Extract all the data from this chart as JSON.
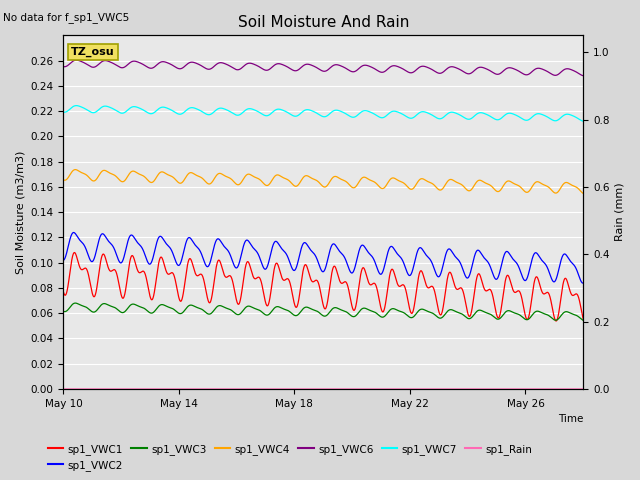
{
  "title": "Soil Moisture And Rain",
  "top_left_note": "No data for f_sp1_VWC5",
  "annotation_text": "TZ_osu",
  "annotation_bgcolor": "#f0e060",
  "annotation_edgecolor": "#a0a000",
  "xlabel": "Time",
  "ylabel_left": "Soil Moisture (m3/m3)",
  "ylabel_right": "Rain (mm)",
  "xlim_days": [
    0,
    18
  ],
  "ylim_left": [
    0.0,
    0.28
  ],
  "ylim_right": [
    0.0,
    1.05
  ],
  "yticks_left": [
    0.0,
    0.02,
    0.04,
    0.06,
    0.08,
    0.1,
    0.12,
    0.14,
    0.16,
    0.18,
    0.2,
    0.22,
    0.24,
    0.26
  ],
  "yticks_right": [
    0.0,
    0.2,
    0.4,
    0.6,
    0.8,
    1.0
  ],
  "xtick_labels": [
    "May 10",
    "May 14",
    "May 18",
    "May 22",
    "May 26"
  ],
  "xtick_positions": [
    0,
    4,
    8,
    12,
    16
  ],
  "background_color": "#d8d8d8",
  "plot_bg_color": "#e8e8e8",
  "grid_color": "white",
  "series": {
    "sp1_VWC1": {
      "color": "red",
      "base": 0.093,
      "amp": 0.02,
      "trend": -0.0012,
      "freq": 1.0,
      "phase": -1.57,
      "sharpness": 3.0
    },
    "sp1_VWC2": {
      "color": "blue",
      "base": 0.114,
      "amp": 0.013,
      "trend": -0.001,
      "freq": 1.0,
      "phase": -1.2,
      "sharpness": 2.0
    },
    "sp1_VWC3": {
      "color": "green",
      "base": 0.065,
      "amp": 0.004,
      "trend": -0.0004,
      "freq": 1.0,
      "phase": -1.57,
      "sharpness": 2.0
    },
    "sp1_VWC4": {
      "color": "orange",
      "base": 0.17,
      "amp": 0.005,
      "trend": -0.0006,
      "freq": 1.0,
      "phase": -1.57,
      "sharpness": 2.0
    },
    "sp1_VWC6": {
      "color": "purple",
      "base": 0.258,
      "amp": 0.003,
      "trend": -0.0004,
      "freq": 1.0,
      "phase": -1.57,
      "sharpness": 1.5
    },
    "sp1_VWC7": {
      "color": "cyan",
      "base": 0.222,
      "amp": 0.003,
      "trend": -0.0004,
      "freq": 1.0,
      "phase": -1.57,
      "sharpness": 1.5
    }
  },
  "rain_color": "#ff69b4",
  "legend_entries": [
    {
      "label": "sp1_VWC1",
      "color": "red"
    },
    {
      "label": "sp1_VWC2",
      "color": "blue"
    },
    {
      "label": "sp1_VWC3",
      "color": "green"
    },
    {
      "label": "sp1_VWC4",
      "color": "orange"
    },
    {
      "label": "sp1_VWC6",
      "color": "purple"
    },
    {
      "label": "sp1_VWC7",
      "color": "cyan"
    },
    {
      "label": "sp1_Rain",
      "color": "#ff69b4"
    }
  ]
}
